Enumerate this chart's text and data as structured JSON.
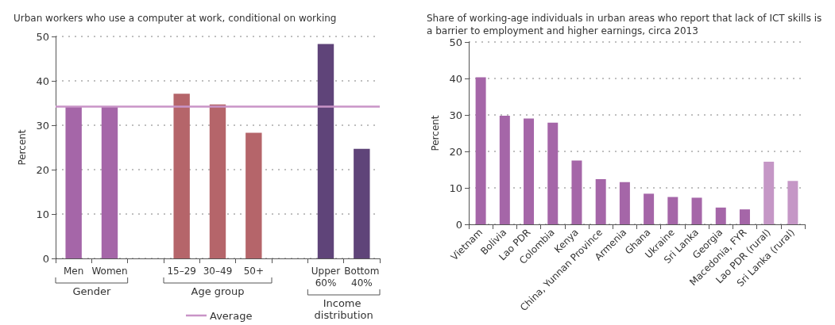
{
  "chart_data": [
    {
      "type": "bar",
      "title": "Urban workers who use a computer at work, conditional on working",
      "ylabel": "Percent",
      "categories": [
        "Men",
        "Women",
        null,
        "15–29",
        "30–49",
        "50+",
        null,
        "Upper\n60%",
        "Bottom\n40%"
      ],
      "values": [
        34.2,
        34.2,
        null,
        37.1,
        34.7,
        28.3,
        null,
        48.3,
        24.7
      ],
      "colors": [
        "#a566a8",
        "#a566a8",
        "#a566a8",
        "#b5656a",
        "#b5656a",
        "#b5656a",
        "#5f4479",
        "#5f4479",
        "#5f4479"
      ],
      "ylim": [
        0,
        50
      ],
      "yticks": [
        0,
        10,
        20,
        30,
        40,
        50
      ],
      "grid": "y",
      "legend": "bottom",
      "annotations": [
        "Gender",
        "Age group",
        "Income distribution"
      ],
      "ref_lines": [
        {
          "axis": "y",
          "value": 34.2,
          "label": "Average",
          "color": "#c994c7"
        }
      ]
    },
    {
      "type": "bar",
      "title": "Share of working-age individuals in urban areas who report that lack of ICT skills is\na barrier to employment and higher earnings, circa 2013",
      "ylabel": "Percent",
      "categories": [
        "Vietnam",
        "Bolivia",
        "Lao PDR",
        "Colombia",
        "Kenya",
        "China, Yunnan Province",
        "Armenia",
        "Ghana",
        "Ukraine",
        "Sri Lanka",
        "Georgia",
        "Macedonia, FYR",
        "Lao PDR (rural)",
        "Sri Lanka (rural)"
      ],
      "values": [
        40.3,
        29.8,
        29.0,
        27.9,
        17.5,
        12.4,
        11.6,
        8.4,
        7.5,
        7.3,
        4.6,
        4.1,
        17.2,
        11.9
      ],
      "colors": [
        "#a566a8",
        "#a566a8",
        "#a566a8",
        "#a566a8",
        "#a566a8",
        "#a566a8",
        "#a566a8",
        "#a566a8",
        "#a566a8",
        "#a566a8",
        "#a566a8",
        "#a566a8",
        "#c597c6",
        "#c597c6"
      ],
      "ylim": [
        0,
        50
      ],
      "yticks": [
        0,
        10,
        20,
        30,
        40,
        50
      ],
      "grid": "y"
    }
  ]
}
